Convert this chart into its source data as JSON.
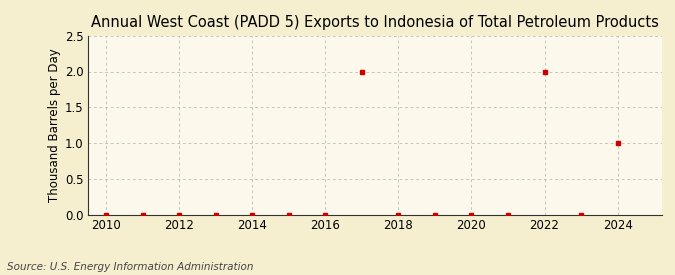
{
  "title": "Annual West Coast (PADD 5) Exports to Indonesia of Total Petroleum Products",
  "ylabel": "Thousand Barrels per Day",
  "source": "Source: U.S. Energy Information Administration",
  "outer_bg": "#f5efd0",
  "inner_bg": "#fdf8ec",
  "marker_color": "#cc0000",
  "years": [
    2010,
    2011,
    2012,
    2013,
    2014,
    2015,
    2016,
    2017,
    2018,
    2019,
    2020,
    2021,
    2022,
    2023,
    2024
  ],
  "values": [
    0.0,
    0.0,
    0.0,
    0.0,
    0.0,
    0.0,
    0.0,
    2.0,
    0.0,
    0.0,
    0.0,
    0.0,
    2.0,
    0.0,
    1.0
  ],
  "xlim": [
    2009.5,
    2025.2
  ],
  "ylim": [
    0.0,
    2.5
  ],
  "yticks": [
    0.0,
    0.5,
    1.0,
    1.5,
    2.0,
    2.5
  ],
  "xticks": [
    2010,
    2012,
    2014,
    2016,
    2018,
    2020,
    2022,
    2024
  ],
  "title_fontsize": 10.5,
  "label_fontsize": 8.5,
  "tick_fontsize": 8.5,
  "source_fontsize": 7.5,
  "grid_color": "#b0b0b0",
  "spine_color": "#333333"
}
